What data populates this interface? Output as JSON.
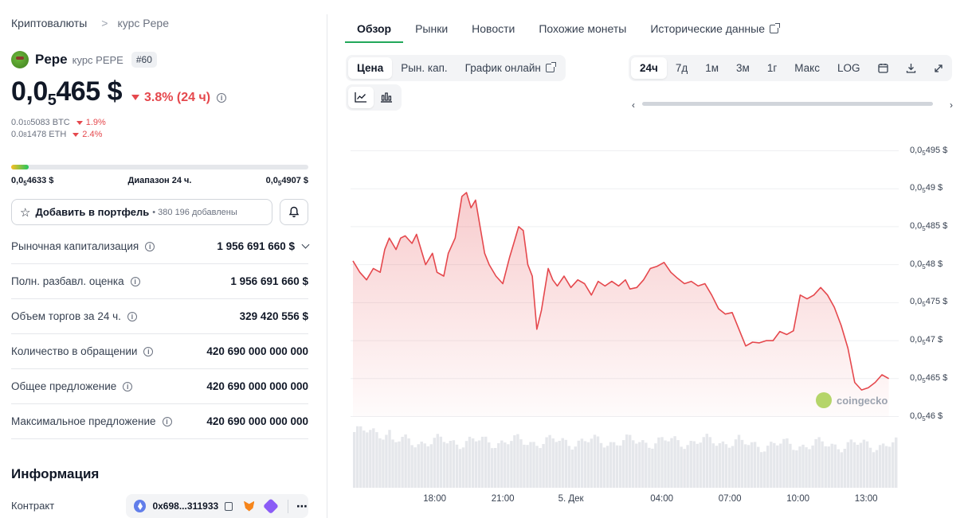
{
  "breadcrumb": {
    "root": "Криптовалюты",
    "separator": ">",
    "current": "курс Pepe"
  },
  "coin": {
    "name": "Pepe",
    "subtitle": "курс PEPE",
    "rank": "#60",
    "price_int": "0,0",
    "price_sub": "5",
    "price_rest": "465 $",
    "change": "3.8% (24 ч)",
    "btc": {
      "a": "0.0",
      "sub": "10",
      "b": "5083 BTC",
      "change": "1.9%"
    },
    "eth": {
      "a": "0.0",
      "sub": "8",
      "b": "1478 ETH",
      "change": "2.4%"
    }
  },
  "range24": {
    "low_a": "0,0",
    "low_sub": "5",
    "low_b": "4633 $",
    "label": "Диапазон 24 ч.",
    "high_a": "0,0",
    "high_sub": "5",
    "high_b": "4907 $",
    "position_fraction": 0.06
  },
  "portfolio": {
    "label": "Добавить в портфель",
    "count": "• 380 196 добавлены"
  },
  "stats": [
    {
      "label": "Рыночная капитализация",
      "value": "1 956 691 660 $"
    },
    {
      "label": "Полн. разбавл. оценка",
      "value": "1 956 691 660 $"
    },
    {
      "label": "Объем торгов за 24 ч.",
      "value": "329 420 556 $"
    },
    {
      "label": "Количество в обращении",
      "value": "420 690 000 000 000"
    },
    {
      "label": "Общее предложение",
      "value": "420 690 000 000 000"
    },
    {
      "label": "Максимальное предложение",
      "value": "420 690 000 000 000"
    }
  ],
  "info": {
    "heading": "Информация",
    "contract_label": "Контракт",
    "contract_address": "0x698...311933"
  },
  "tabs": [
    "Обзор",
    "Рынки",
    "Новости",
    "Похожие монеты",
    "Исторические данные"
  ],
  "chart_controls": {
    "modes": [
      "Цена",
      "Рын. кап.",
      "График онлайн"
    ],
    "ranges": [
      "24ч",
      "7д",
      "1м",
      "3м",
      "1г",
      "Макс",
      "LOG"
    ]
  },
  "watermark": "coingecko",
  "colors": {
    "accent_green": "#22a85a",
    "negative": "#e5484d",
    "line": "#e5484d"
  },
  "chart_data": {
    "type": "area",
    "xlabel": "",
    "ylabel": "",
    "y_ticks": [
      {
        "a": "0,0",
        "sub": "5",
        "b": "495 $",
        "value": 4.95e-06
      },
      {
        "a": "0,0",
        "sub": "5",
        "b": "49 $",
        "value": 4.9e-06
      },
      {
        "a": "0,0",
        "sub": "5",
        "b": "485 $",
        "value": 4.85e-06
      },
      {
        "a": "0,0",
        "sub": "5",
        "b": "48 $",
        "value": 4.8e-06
      },
      {
        "a": "0,0",
        "sub": "5",
        "b": "475 $",
        "value": 4.75e-06
      },
      {
        "a": "0,0",
        "sub": "5",
        "b": "47 $",
        "value": 4.7e-06
      },
      {
        "a": "0,0",
        "sub": "5",
        "b": "465 $",
        "value": 4.65e-06
      },
      {
        "a": "0,0",
        "sub": "5",
        "b": "46 $",
        "value": 4.6e-06
      }
    ],
    "x_ticks": [
      {
        "label": "18:00",
        "t": 3.6
      },
      {
        "label": "21:00",
        "t": 6.6
      },
      {
        "label": "5. Дек",
        "t": 9.6
      },
      {
        "label": "04:00",
        "t": 13.6
      },
      {
        "label": "07:00",
        "t": 16.6
      },
      {
        "label": "10:00",
        "t": 19.6
      },
      {
        "label": "13:00",
        "t": 22.6
      }
    ],
    "ylim": [
      4.59e-06,
      4.98e-06
    ],
    "xlim": [
      0,
      24
    ],
    "grid": true,
    "series": [
      {
        "values": [
          [
            0.0,
            4.805e-06
          ],
          [
            0.3,
            4.79e-06
          ],
          [
            0.6,
            4.78e-06
          ],
          [
            0.9,
            4.795e-06
          ],
          [
            1.2,
            4.79e-06
          ],
          [
            1.4,
            4.82e-06
          ],
          [
            1.6,
            4.835e-06
          ],
          [
            1.9,
            4.82e-06
          ],
          [
            2.1,
            4.835e-06
          ],
          [
            2.3,
            4.838e-06
          ],
          [
            2.6,
            4.828e-06
          ],
          [
            2.8,
            4.84e-06
          ],
          [
            3.0,
            4.82e-06
          ],
          [
            3.2,
            4.8e-06
          ],
          [
            3.5,
            4.815e-06
          ],
          [
            3.7,
            4.79e-06
          ],
          [
            4.0,
            4.785e-06
          ],
          [
            4.2,
            4.815e-06
          ],
          [
            4.5,
            4.835e-06
          ],
          [
            4.8,
            4.89e-06
          ],
          [
            5.0,
            4.895e-06
          ],
          [
            5.2,
            4.875e-06
          ],
          [
            5.4,
            4.885e-06
          ],
          [
            5.6,
            4.85e-06
          ],
          [
            5.8,
            4.815e-06
          ],
          [
            6.0,
            4.8e-06
          ],
          [
            6.3,
            4.785e-06
          ],
          [
            6.6,
            4.775e-06
          ],
          [
            6.9,
            4.81e-06
          ],
          [
            7.1,
            4.83e-06
          ],
          [
            7.3,
            4.85e-06
          ],
          [
            7.5,
            4.845e-06
          ],
          [
            7.7,
            4.8e-06
          ],
          [
            7.9,
            4.785e-06
          ],
          [
            8.1,
            4.715e-06
          ],
          [
            8.3,
            4.74e-06
          ],
          [
            8.6,
            4.795e-06
          ],
          [
            8.8,
            4.78e-06
          ],
          [
            9.0,
            4.772e-06
          ],
          [
            9.3,
            4.785e-06
          ],
          [
            9.6,
            4.77e-06
          ],
          [
            9.9,
            4.78e-06
          ],
          [
            10.2,
            4.775e-06
          ],
          [
            10.5,
            4.76e-06
          ],
          [
            10.8,
            4.778e-06
          ],
          [
            11.1,
            4.772e-06
          ],
          [
            11.4,
            4.778e-06
          ],
          [
            11.7,
            4.772e-06
          ],
          [
            12.0,
            4.78e-06
          ],
          [
            12.2,
            4.768e-06
          ],
          [
            12.5,
            4.77e-06
          ],
          [
            12.8,
            4.78e-06
          ],
          [
            13.1,
            4.795e-06
          ],
          [
            13.4,
            4.798e-06
          ],
          [
            13.7,
            4.803e-06
          ],
          [
            14.0,
            4.79e-06
          ],
          [
            14.3,
            4.782e-06
          ],
          [
            14.6,
            4.775e-06
          ],
          [
            14.9,
            4.778e-06
          ],
          [
            15.2,
            4.772e-06
          ],
          [
            15.5,
            4.775e-06
          ],
          [
            15.8,
            4.76e-06
          ],
          [
            16.1,
            4.742e-06
          ],
          [
            16.4,
            4.735e-06
          ],
          [
            16.7,
            4.737e-06
          ],
          [
            17.0,
            4.715e-06
          ],
          [
            17.3,
            4.693e-06
          ],
          [
            17.6,
            4.698e-06
          ],
          [
            17.9,
            4.697e-06
          ],
          [
            18.2,
            4.7e-06
          ],
          [
            18.5,
            4.7e-06
          ],
          [
            18.8,
            4.712e-06
          ],
          [
            19.1,
            4.708e-06
          ],
          [
            19.4,
            4.713e-06
          ],
          [
            19.7,
            4.76e-06
          ],
          [
            20.0,
            4.755e-06
          ],
          [
            20.3,
            4.76e-06
          ],
          [
            20.6,
            4.77e-06
          ],
          [
            20.9,
            4.76e-06
          ],
          [
            21.2,
            4.744e-06
          ],
          [
            21.5,
            4.72e-06
          ],
          [
            21.8,
            4.69e-06
          ],
          [
            22.1,
            4.645e-06
          ],
          [
            22.4,
            4.635e-06
          ],
          [
            22.7,
            4.638e-06
          ],
          [
            23.0,
            4.645e-06
          ],
          [
            23.3,
            4.655e-06
          ],
          [
            23.6,
            4.65e-06
          ]
        ]
      }
    ],
    "volume_bar_count": 170
  }
}
